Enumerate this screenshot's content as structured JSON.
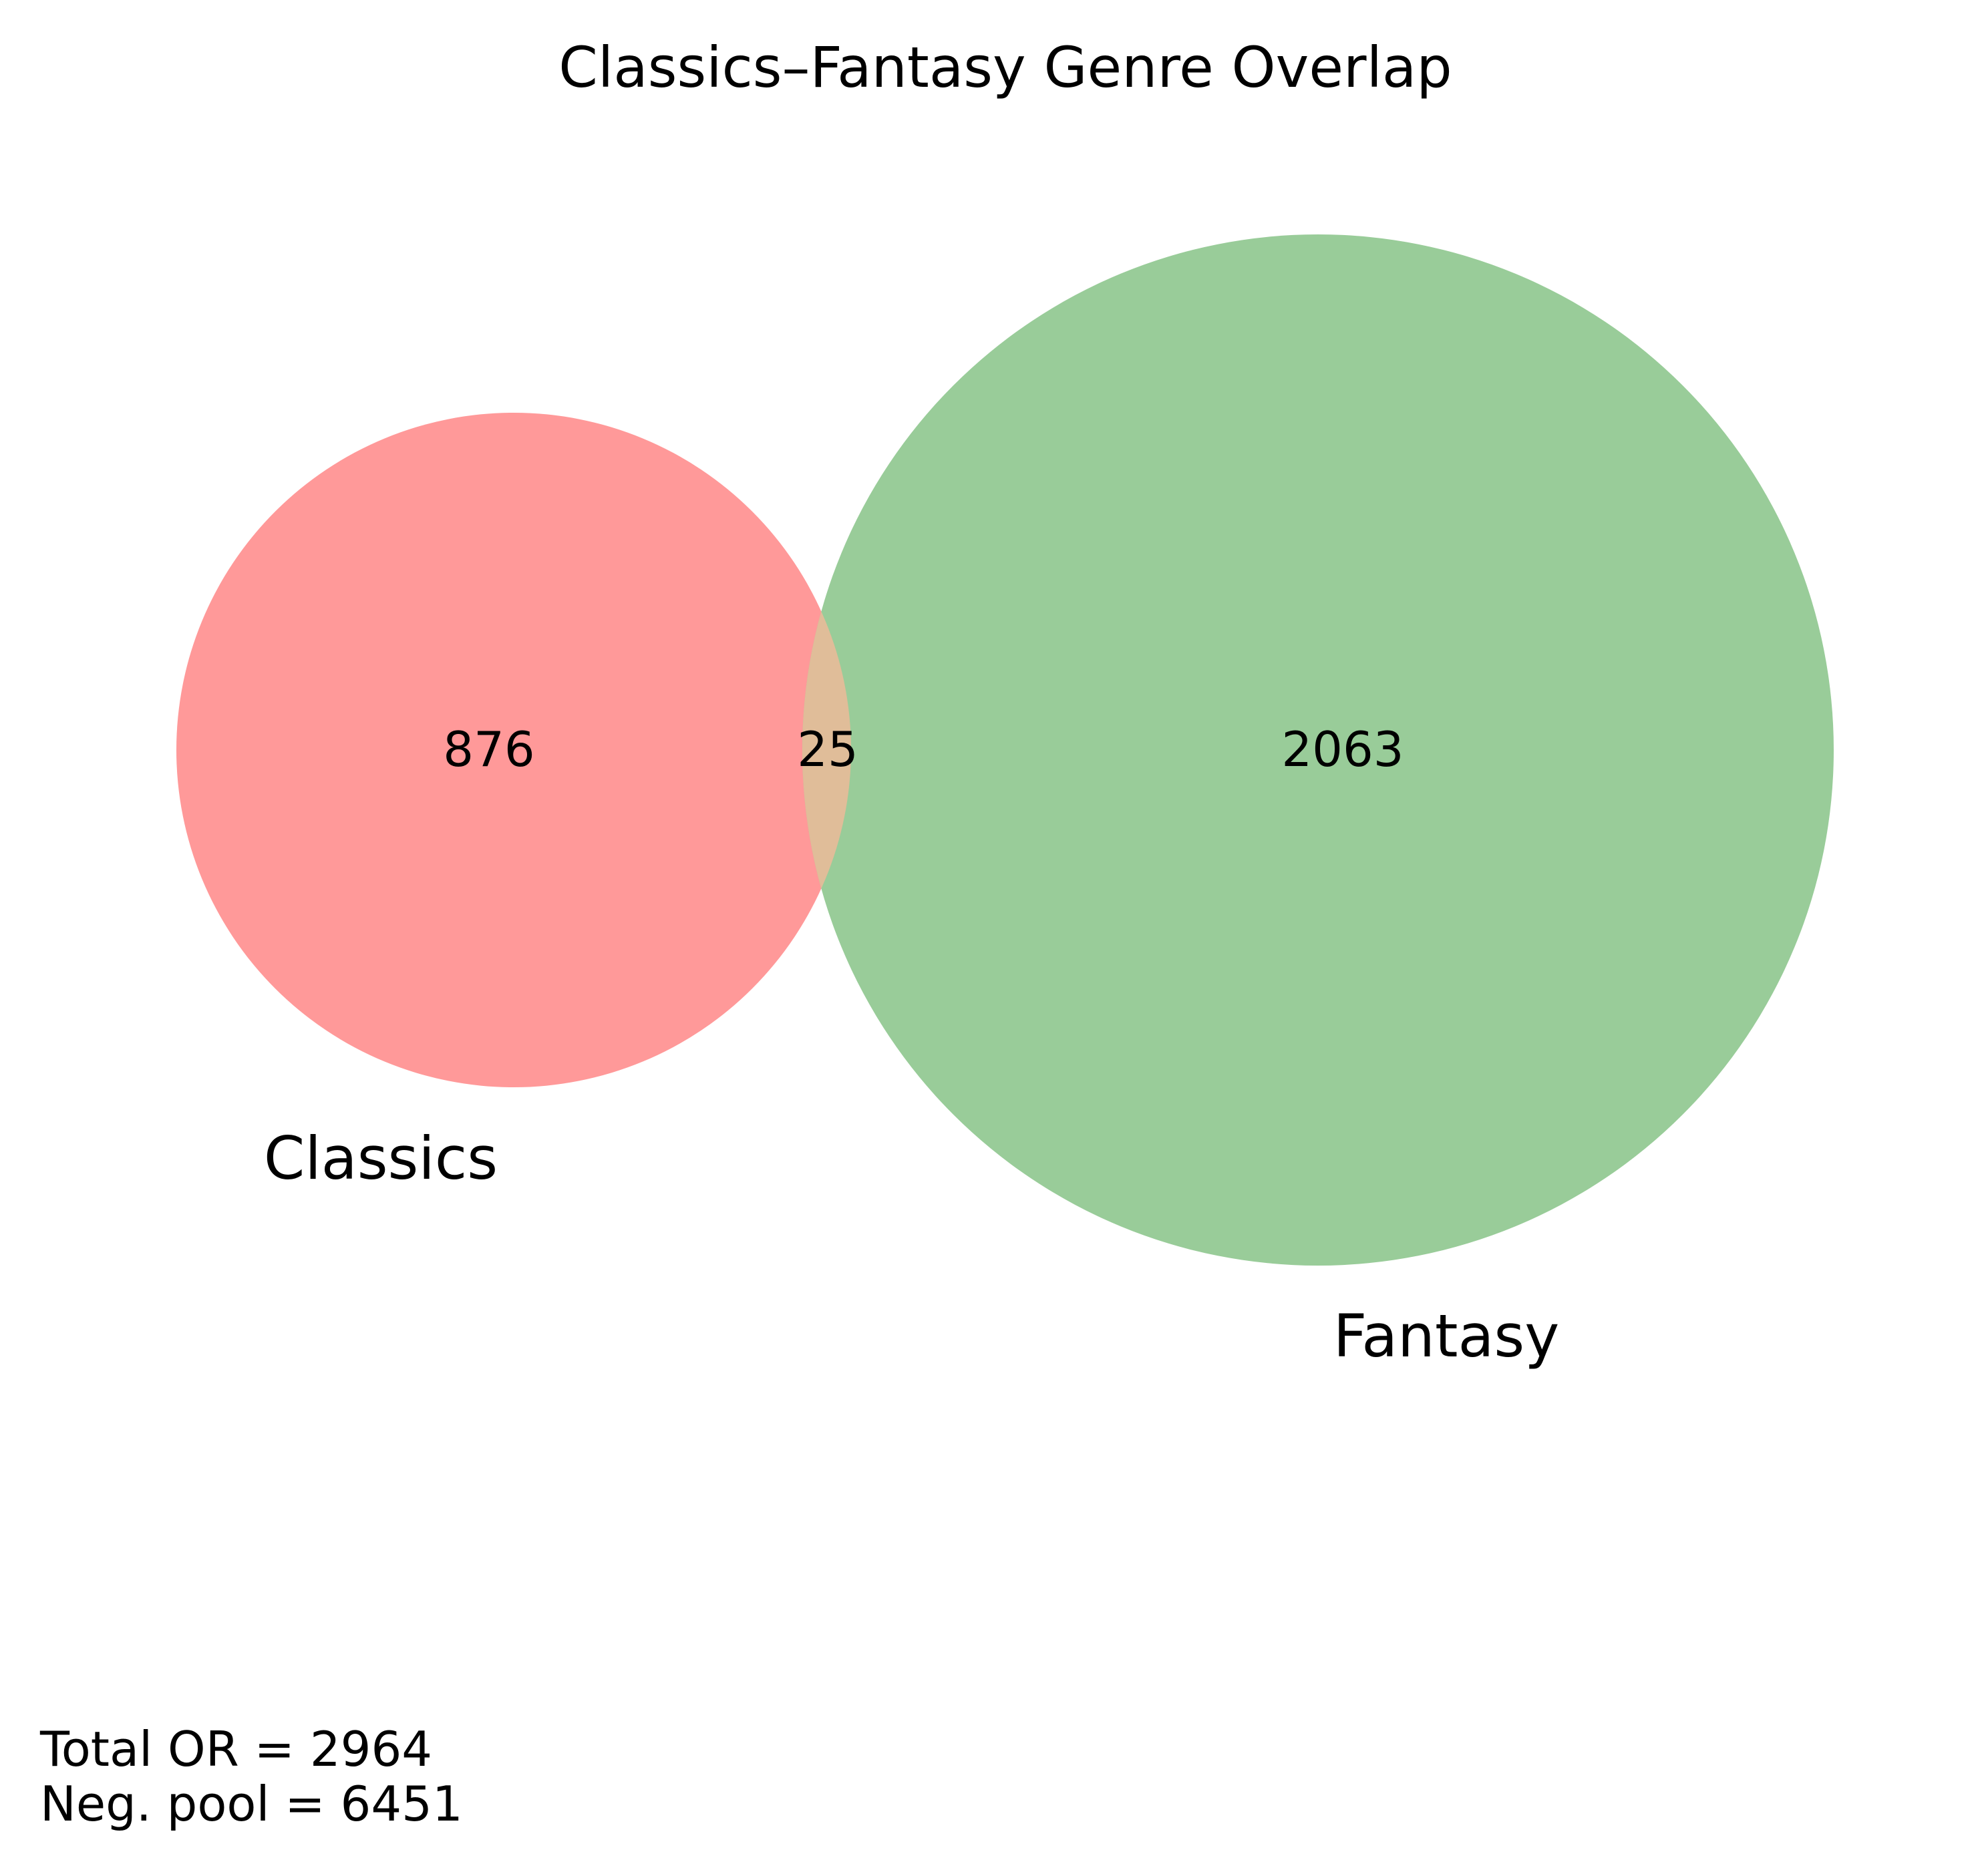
{
  "title": "Classics–Fantasy Genre Overlap",
  "sets": [
    {
      "name": "Classics",
      "only_count": "876",
      "color": "#ff9999"
    },
    {
      "name": "Fantasy",
      "only_count": "2063",
      "color": "#99cc99"
    }
  ],
  "intersection": {
    "count": "25",
    "color": "#e0bd99"
  },
  "notes": {
    "total": "Total OR = 2964",
    "neg_pool": "Neg. pool = 6451"
  }
}
